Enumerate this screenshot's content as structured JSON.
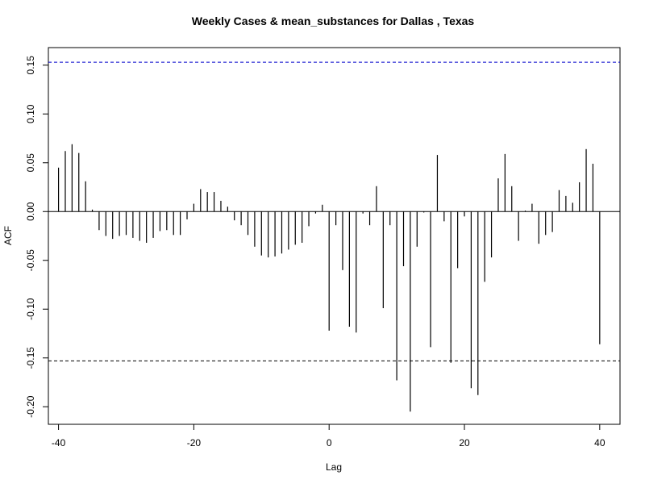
{
  "chart_data": {
    "type": "bar",
    "title": "Weekly Cases & mean_substances for Dallas , Texas",
    "xlabel": "Lag",
    "ylabel": "ACF",
    "xlim": [
      -41.5,
      43
    ],
    "ylim": [
      -0.218,
      0.168
    ],
    "x_ticks": [
      -40,
      -20,
      0,
      20,
      40
    ],
    "x_tick_labels": [
      "-40",
      "-20",
      "0",
      "20",
      "40"
    ],
    "y_ticks": [
      -0.2,
      -0.15,
      -0.1,
      -0.05,
      0.0,
      0.05,
      0.1,
      0.15
    ],
    "y_tick_labels": [
      "-0.20",
      "-0.15",
      "-0.10",
      "-0.05",
      "0.00",
      "0.05",
      "0.10",
      "0.15"
    ],
    "zero_line": 0,
    "confidence_bounds": [
      0.153,
      -0.153
    ],
    "colors": {
      "bars": "#000000",
      "upper_bound": "#0000cc",
      "lower_bound": "#000000",
      "frame": "#000000"
    },
    "x": [
      -40,
      -39,
      -38,
      -37,
      -36,
      -35,
      -34,
      -33,
      -32,
      -31,
      -30,
      -29,
      -28,
      -27,
      -26,
      -25,
      -24,
      -23,
      -22,
      -21,
      -20,
      -19,
      -18,
      -17,
      -16,
      -15,
      -14,
      -13,
      -12,
      -11,
      -10,
      -9,
      -8,
      -7,
      -6,
      -5,
      -4,
      -3,
      -2,
      -1,
      0,
      1,
      2,
      3,
      4,
      5,
      6,
      7,
      8,
      9,
      10,
      11,
      12,
      13,
      14,
      15,
      16,
      17,
      18,
      19,
      20,
      21,
      22,
      23,
      24,
      25,
      26,
      27,
      28,
      29,
      30,
      31,
      32,
      33,
      34,
      35,
      36,
      37,
      38,
      39,
      40
    ],
    "values": [
      0.045,
      0.062,
      0.069,
      0.06,
      0.031,
      0.002,
      -0.019,
      -0.025,
      -0.028,
      -0.025,
      -0.024,
      -0.027,
      -0.03,
      -0.032,
      -0.027,
      -0.02,
      -0.019,
      -0.024,
      -0.024,
      -0.008,
      0.008,
      0.023,
      0.02,
      0.02,
      0.011,
      0.005,
      -0.009,
      -0.014,
      -0.024,
      -0.036,
      -0.045,
      -0.047,
      -0.046,
      -0.043,
      -0.039,
      -0.034,
      -0.032,
      -0.015,
      -0.002,
      0.007,
      -0.122,
      -0.014,
      -0.06,
      -0.118,
      -0.124,
      -0.002,
      -0.014,
      0.026,
      -0.099,
      -0.014,
      -0.173,
      -0.056,
      -0.205,
      -0.036,
      -0.001,
      -0.139,
      0.058,
      -0.01,
      -0.155,
      -0.058,
      -0.005,
      -0.181,
      -0.188,
      -0.072,
      -0.047,
      0.034,
      0.059,
      0.026,
      -0.03,
      0.001,
      0.008,
      -0.033,
      -0.024,
      -0.021,
      0.022,
      0.016,
      0.009,
      0.03,
      0.064,
      0.049,
      -0.136
    ]
  }
}
